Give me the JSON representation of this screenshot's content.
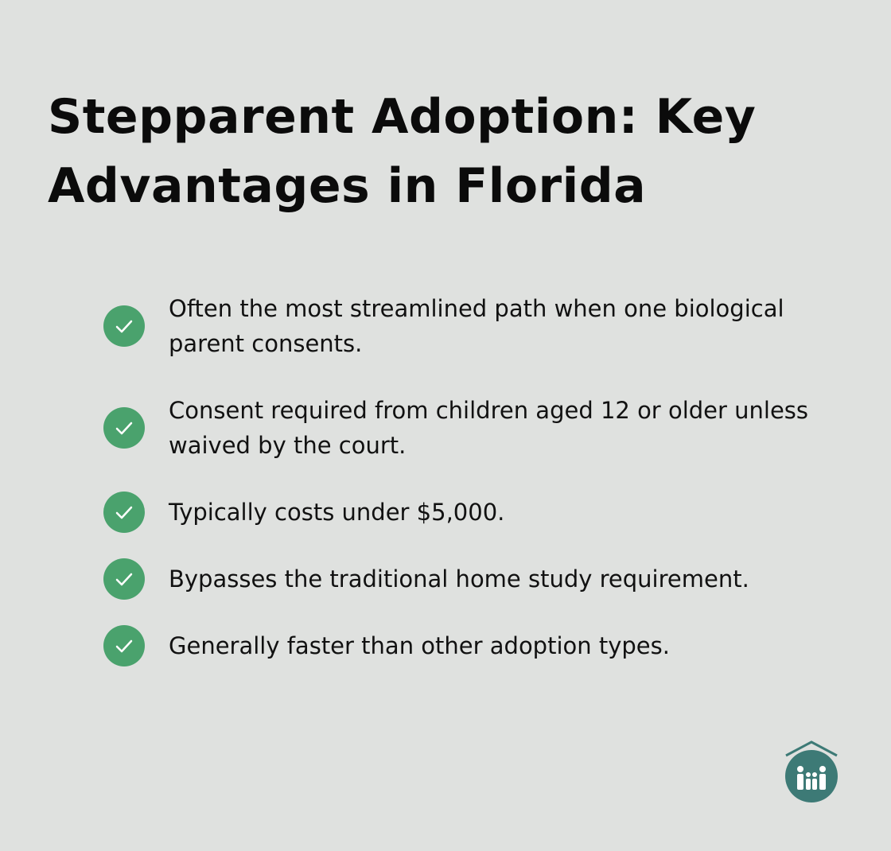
{
  "header": {
    "title": "Stepparent Adoption: Key Advantages in Florida"
  },
  "items": [
    "Often the most streamlined path when one biological parent consents.",
    "Consent required from children aged 12 or older unless waived by the court.",
    "Typically costs under $5,000.",
    "Bypasses the traditional home study requirement.",
    "Generally faster than other adoption types."
  ]
}
